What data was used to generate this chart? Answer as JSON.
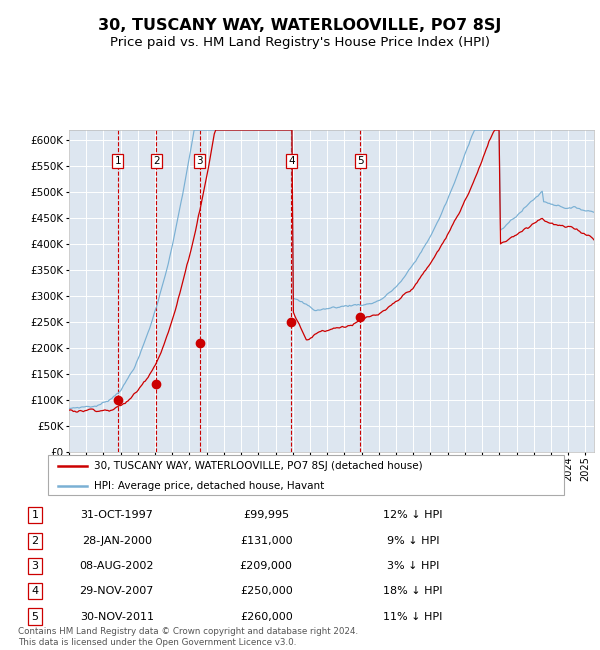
{
  "title": "30, TUSCANY WAY, WATERLOOVILLE, PO7 8SJ",
  "subtitle": "Price paid vs. HM Land Registry's House Price Index (HPI)",
  "title_fontsize": 11.5,
  "subtitle_fontsize": 9.5,
  "background_color": "#ffffff",
  "plot_bg_color": "#dde6f0",
  "grid_color": "#ffffff",
  "ylim": [
    0,
    620000
  ],
  "yticks": [
    0,
    50000,
    100000,
    150000,
    200000,
    250000,
    300000,
    350000,
    400000,
    450000,
    500000,
    550000,
    600000
  ],
  "hpi_color": "#7ab0d4",
  "sale_color": "#cc0000",
  "dot_color": "#cc0000",
  "vline_color": "#cc0000",
  "sale_transactions": [
    {
      "label": "1",
      "date_num": 1997.83,
      "price": 99995
    },
    {
      "label": "2",
      "date_num": 2000.08,
      "price": 131000
    },
    {
      "label": "3",
      "date_num": 2002.6,
      "price": 209000
    },
    {
      "label": "4",
      "date_num": 2007.92,
      "price": 250000
    },
    {
      "label": "5",
      "date_num": 2011.92,
      "price": 260000
    }
  ],
  "legend_property_label": "30, TUSCANY WAY, WATERLOOVILLE, PO7 8SJ (detached house)",
  "legend_hpi_label": "HPI: Average price, detached house, Havant",
  "table_rows": [
    {
      "num": "1",
      "date": "31-OCT-1997",
      "price": "£99,995",
      "hpi": "12% ↓ HPI"
    },
    {
      "num": "2",
      "date": "28-JAN-2000",
      "price": "£131,000",
      "hpi": "9% ↓ HPI"
    },
    {
      "num": "3",
      "date": "08-AUG-2002",
      "price": "£209,000",
      "hpi": "3% ↓ HPI"
    },
    {
      "num": "4",
      "date": "29-NOV-2007",
      "price": "£250,000",
      "hpi": "18% ↓ HPI"
    },
    {
      "num": "5",
      "date": "30-NOV-2011",
      "price": "£260,000",
      "hpi": "11% ↓ HPI"
    }
  ],
  "footer_text": "Contains HM Land Registry data © Crown copyright and database right 2024.\nThis data is licensed under the Open Government Licence v3.0.",
  "xstart": 1995.0,
  "xend": 2025.5
}
